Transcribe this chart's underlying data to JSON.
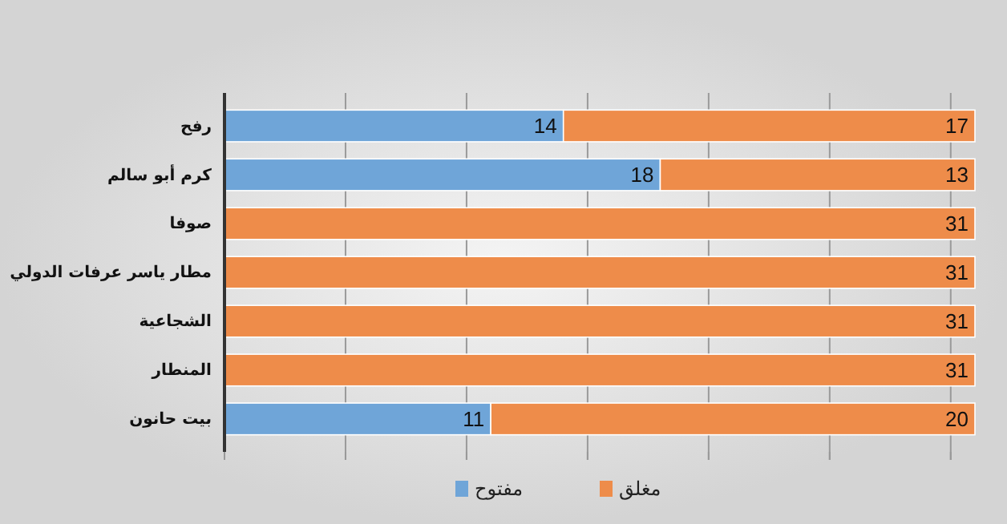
{
  "chart_data": {
    "type": "bar",
    "orientation": "horizontal",
    "stacked": true,
    "data_labels": true,
    "categories": [
      "رفح",
      "كرم أبو سالم",
      "صوفا",
      "مطار ياسر عرفات الدولي",
      "الشجاعية",
      "المنطار",
      "بيت حانون"
    ],
    "series": [
      {
        "name": "مفتوح",
        "color": "#6fa5d8",
        "values": [
          14,
          18,
          null,
          null,
          null,
          null,
          11
        ]
      },
      {
        "name": "مغلق",
        "color": "#ee8c4a",
        "values": [
          17,
          13,
          31,
          31,
          31,
          31,
          20
        ]
      }
    ],
    "xlim": [
      0,
      31
    ],
    "xticks": [
      {
        "value": 0,
        "label": null
      },
      {
        "value": 5,
        "label": null
      },
      {
        "value": 10,
        "label": null
      },
      {
        "value": 15,
        "label": null
      },
      {
        "value": 20,
        "label": null
      },
      {
        "value": 25,
        "label": null
      },
      {
        "value": 30,
        "label": null
      }
    ],
    "tick_labels": "y",
    "grid": "x",
    "legend": "bottom"
  }
}
